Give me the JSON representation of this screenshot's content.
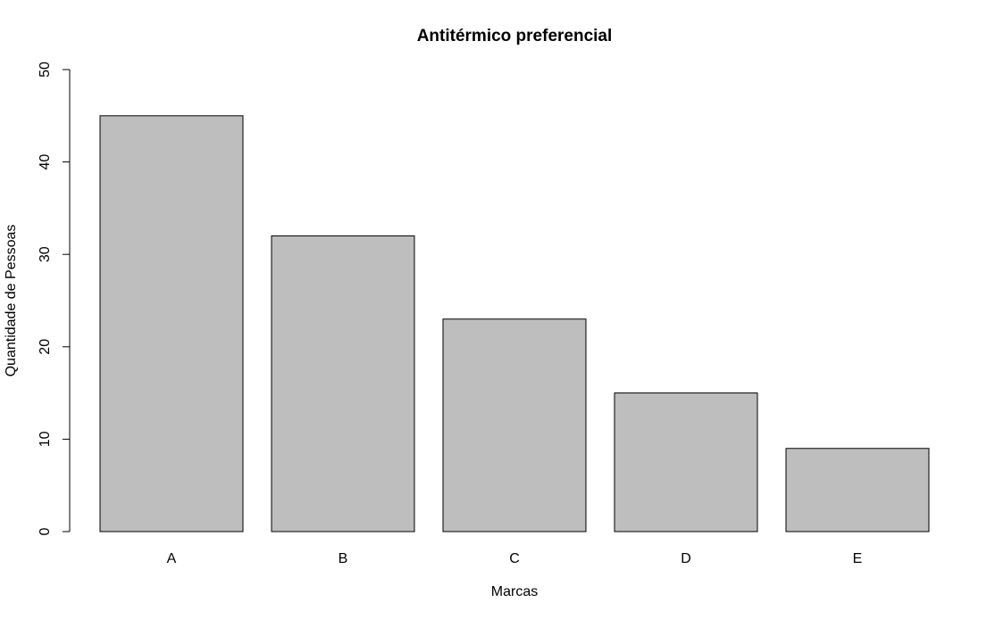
{
  "chart_data": {
    "type": "bar",
    "title": "Antitérmico preferencial",
    "xlabel": "Marcas",
    "ylabel": "Quantidade de Pessoas",
    "categories": [
      "A",
      "B",
      "C",
      "D",
      "E"
    ],
    "values": [
      45,
      32,
      23,
      15,
      9
    ],
    "ylim": [
      0,
      50
    ],
    "yticks": [
      0,
      10,
      20,
      30,
      40,
      50
    ],
    "grid": false,
    "legend": "none",
    "bar_color": "#bebebe",
    "border_color": "#000000"
  }
}
